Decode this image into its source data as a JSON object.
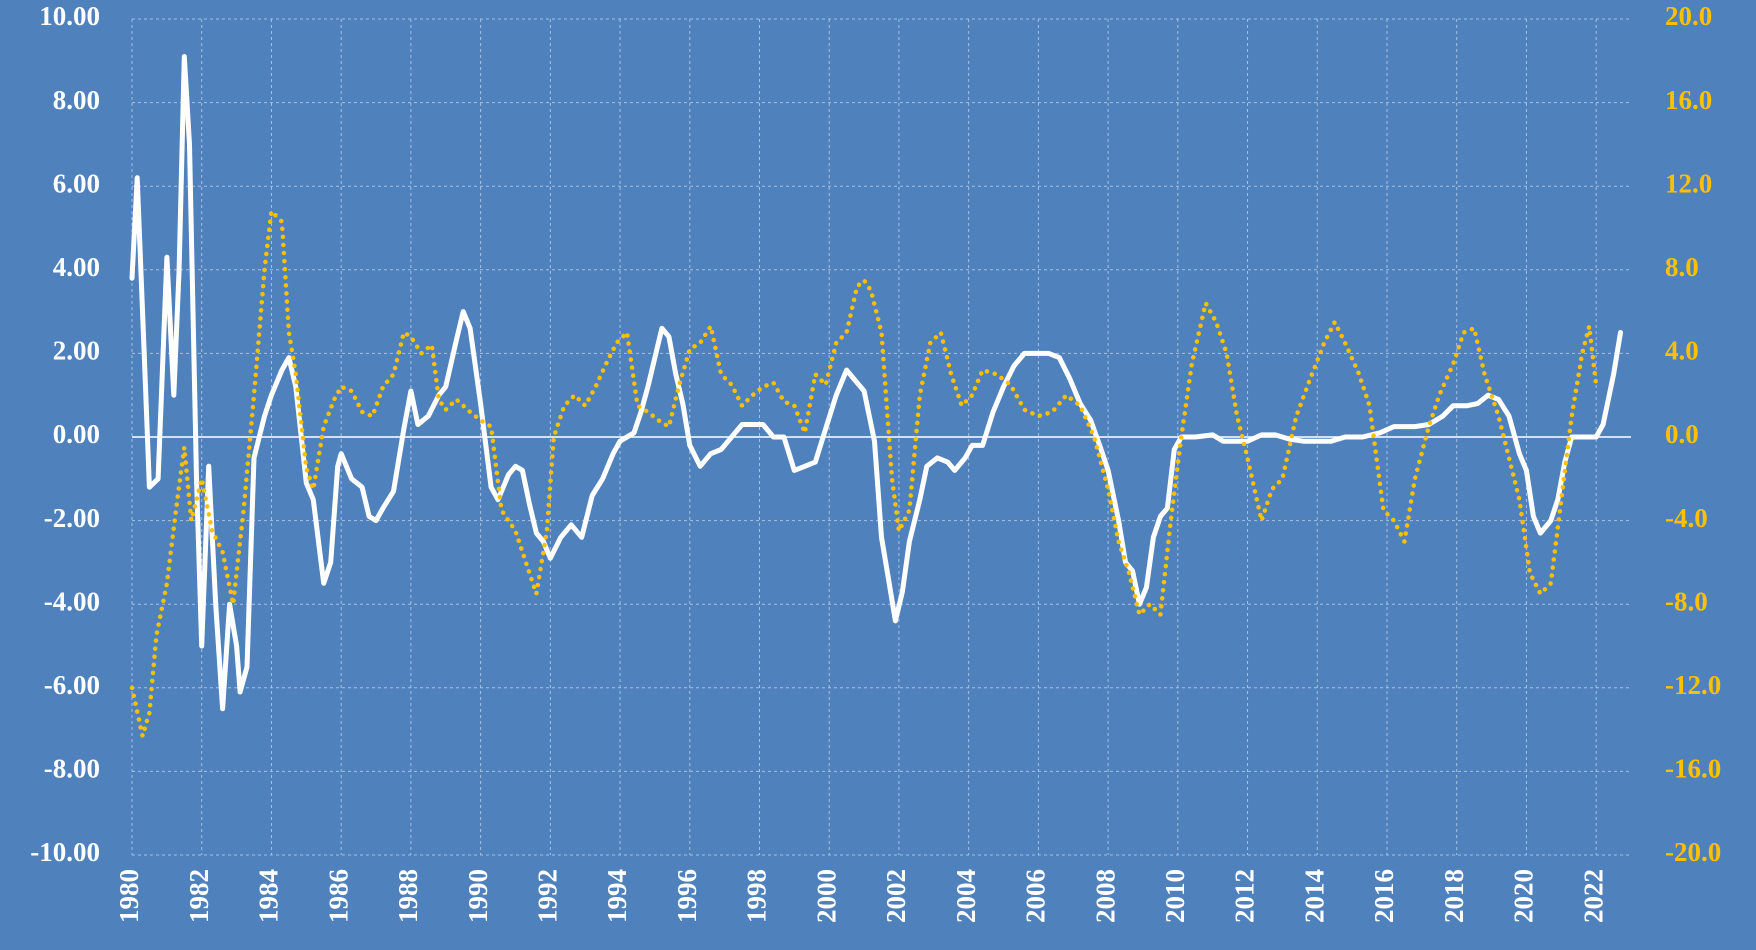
{
  "chart_data": {
    "type": "line",
    "xlim": [
      1980,
      2023
    ],
    "xticks": [
      1980,
      1982,
      1984,
      1986,
      1988,
      1990,
      1992,
      1994,
      1996,
      1998,
      2000,
      2002,
      2004,
      2006,
      2008,
      2010,
      2012,
      2014,
      2016,
      2018,
      2020,
      2022
    ],
    "ylim": [
      -10,
      10
    ],
    "yticks": [
      {
        "value": -10,
        "label": "-10.00"
      },
      {
        "value": -8,
        "label": "-8.00"
      },
      {
        "value": -6,
        "label": "-6.00"
      },
      {
        "value": -4,
        "label": "-4.00"
      },
      {
        "value": -2,
        "label": "-2.00"
      },
      {
        "value": 0,
        "label": "0.00"
      },
      {
        "value": 2,
        "label": "2.00"
      },
      {
        "value": 4,
        "label": "4.00"
      },
      {
        "value": 6,
        "label": "6.00"
      },
      {
        "value": 8,
        "label": "8.00"
      },
      {
        "value": 10,
        "label": "10.00"
      }
    ],
    "y2lim": [
      -20,
      20
    ],
    "y2ticks": [
      {
        "value": -20,
        "label": "-20.0"
      },
      {
        "value": -16,
        "label": "-16.0"
      },
      {
        "value": -12,
        "label": "-12.0"
      },
      {
        "value": -8,
        "label": "-8.0"
      },
      {
        "value": -4,
        "label": "-4.0"
      },
      {
        "value": 0,
        "label": "0.0"
      },
      {
        "value": 4,
        "label": "4.0"
      },
      {
        "value": 8,
        "label": "8.0"
      },
      {
        "value": 12,
        "label": "12.0"
      },
      {
        "value": 16,
        "label": "16.0"
      },
      {
        "value": 20,
        "label": "20.0"
      }
    ],
    "grid": true,
    "series": [
      {
        "color": "#ffffff",
        "style": "solid",
        "x": [
          1980.0,
          1980.15,
          1980.35,
          1980.5,
          1980.75,
          1981.0,
          1981.2,
          1981.35,
          1981.5,
          1981.65,
          1981.85,
          1982.0,
          1982.2,
          1982.4,
          1982.6,
          1982.8,
          1983.0,
          1983.1,
          1983.3,
          1983.5,
          1983.8,
          1984.0,
          1984.3,
          1984.5,
          1984.7,
          1985.0,
          1985.2,
          1985.5,
          1985.7,
          1985.9,
          1986.0,
          1986.3,
          1986.6,
          1986.8,
          1987.0,
          1987.2,
          1987.5,
          1987.8,
          1988.0,
          1988.2,
          1988.5,
          1988.8,
          1989.0,
          1989.3,
          1989.5,
          1989.7,
          1990.0,
          1990.3,
          1990.5,
          1990.8,
          1991.0,
          1991.2,
          1991.4,
          1991.6,
          1991.8,
          1992.0,
          1992.3,
          1992.6,
          1992.9,
          1993.2,
          1993.5,
          1993.8,
          1994.0,
          1994.4,
          1994.6,
          1994.8,
          1995.0,
          1995.2,
          1995.4,
          1995.6,
          1995.8,
          1996.0,
          1996.3,
          1996.6,
          1996.9,
          1997.2,
          1997.5,
          1997.8,
          1998.1,
          1998.4,
          1998.7,
          1999.0,
          1999.3,
          1999.6,
          1999.9,
          2000.2,
          2000.5,
          2000.8,
          2001.0,
          2001.3,
          2001.5,
          2001.7,
          2001.9,
          2002.1,
          2002.3,
          2002.6,
          2002.8,
          2003.1,
          2003.4,
          2003.6,
          2003.9,
          2004.1,
          2004.4,
          2004.7,
          2005.0,
          2005.3,
          2005.6,
          2006.0,
          2006.3,
          2006.6,
          2006.9,
          2007.2,
          2007.5,
          2007.8,
          2008.0,
          2008.3,
          2008.5,
          2008.7,
          2008.9,
          2009.1,
          2009.3,
          2009.5,
          2009.7,
          2009.9,
          2010.1,
          2010.5,
          2011.0,
          2011.3,
          2011.7,
          2012.0,
          2012.4,
          2012.8,
          2013.2,
          2013.6,
          2014.0,
          2014.4,
          2014.8,
          2015.3,
          2015.8,
          2016.2,
          2016.8,
          2017.2,
          2017.6,
          2017.9,
          2018.3,
          2018.6,
          2018.9,
          2019.2,
          2019.5,
          2019.8,
          2020.0,
          2020.2,
          2020.4,
          2020.7,
          2020.9,
          2021.1,
          2021.3,
          2021.6,
          2022.0,
          2022.2,
          2022.5,
          2022.7
        ],
        "values": [
          3.8,
          6.2,
          2.0,
          -1.2,
          -1.0,
          4.3,
          1.0,
          4.0,
          9.1,
          7.0,
          -1.0,
          -5.0,
          -0.7,
          -4.0,
          -6.5,
          -4.0,
          -5.0,
          -6.1,
          -5.5,
          -0.5,
          0.5,
          1.0,
          1.6,
          1.9,
          1.2,
          -1.1,
          -1.5,
          -3.5,
          -3.0,
          -0.7,
          -0.4,
          -1.0,
          -1.2,
          -1.9,
          -2.0,
          -1.7,
          -1.3,
          0.2,
          1.1,
          0.3,
          0.5,
          1.0,
          1.2,
          2.3,
          3.0,
          2.6,
          0.8,
          -1.2,
          -1.5,
          -0.9,
          -0.7,
          -0.8,
          -1.6,
          -2.3,
          -2.5,
          -2.9,
          -2.4,
          -2.1,
          -2.4,
          -1.4,
          -1.0,
          -0.4,
          -0.1,
          0.1,
          0.6,
          1.2,
          1.9,
          2.6,
          2.4,
          1.5,
          0.8,
          -0.2,
          -0.7,
          -0.4,
          -0.3,
          0.0,
          0.3,
          0.3,
          0.3,
          0.0,
          0.0,
          -0.8,
          -0.7,
          -0.6,
          0.2,
          1.0,
          1.6,
          1.3,
          1.1,
          -0.1,
          -2.4,
          -3.4,
          -4.4,
          -3.7,
          -2.5,
          -1.5,
          -0.7,
          -0.5,
          -0.6,
          -0.8,
          -0.5,
          -0.2,
          -0.2,
          0.6,
          1.2,
          1.7,
          2.0,
          2.0,
          2.0,
          1.9,
          1.4,
          0.8,
          0.4,
          -0.3,
          -0.8,
          -2.0,
          -3.0,
          -3.2,
          -4.0,
          -3.6,
          -2.4,
          -1.9,
          -1.7,
          -0.3,
          0.0,
          0.0,
          0.05,
          -0.1,
          -0.1,
          -0.1,
          0.05,
          0.05,
          -0.05,
          -0.1,
          -0.1,
          -0.1,
          0.0,
          0.0,
          0.1,
          0.25,
          0.25,
          0.3,
          0.5,
          0.75,
          0.75,
          0.8,
          1.0,
          0.9,
          0.5,
          -0.4,
          -0.8,
          -1.9,
          -2.3,
          -2.0,
          -1.5,
          -0.6,
          0.0,
          0.0,
          0.0,
          0.3,
          1.5,
          2.5
        ]
      },
      {
        "color": "#ffc000",
        "style": "dotted",
        "axis": "y2",
        "x": [
          1980.0,
          1980.3,
          1980.5,
          1980.7,
          1981.0,
          1981.3,
          1981.5,
          1981.7,
          1982.0,
          1982.3,
          1982.6,
          1982.9,
          1983.2,
          1983.5,
          1983.8,
          1984.0,
          1984.3,
          1984.5,
          1984.7,
          1985.0,
          1985.2,
          1985.5,
          1985.8,
          1986.0,
          1986.3,
          1986.6,
          1986.9,
          1987.2,
          1987.5,
          1987.8,
          1988.0,
          1988.3,
          1988.6,
          1988.8,
          1989.0,
          1989.3,
          1989.7,
          1990.0,
          1990.3,
          1990.6,
          1991.0,
          1991.3,
          1991.6,
          1991.9,
          1992.1,
          1992.4,
          1992.7,
          1993.0,
          1993.3,
          1993.6,
          1993.9,
          1994.2,
          1994.5,
          1994.8,
          1995.1,
          1995.4,
          1995.7,
          1996.0,
          1996.3,
          1996.6,
          1996.9,
          1997.2,
          1997.5,
          1997.8,
          1998.1,
          1998.4,
          1998.7,
          1999.0,
          1999.3,
          1999.6,
          1999.9,
          2000.2,
          2000.5,
          2000.8,
          2001.0,
          2001.2,
          2001.5,
          2001.8,
          2002.0,
          2002.3,
          2002.6,
          2002.9,
          2003.2,
          2003.5,
          2003.8,
          2004.1,
          2004.4,
          2004.8,
          2005.2,
          2005.6,
          2006.0,
          2006.4,
          2006.8,
          2007.2,
          2007.6,
          2008.0,
          2008.3,
          2008.6,
          2008.9,
          2009.2,
          2009.5,
          2009.8,
          2010.1,
          2010.4,
          2010.8,
          2011.1,
          2011.4,
          2011.7,
          2012.0,
          2012.4,
          2012.7,
          2013.0,
          2013.4,
          2013.8,
          2014.2,
          2014.5,
          2014.8,
          2015.2,
          2015.5,
          2015.9,
          2016.2,
          2016.5,
          2016.8,
          2017.2,
          2017.5,
          2017.9,
          2018.2,
          2018.5,
          2018.8,
          2019.2,
          2019.5,
          2019.8,
          2020.1,
          2020.4,
          2020.7,
          2021.0,
          2021.3,
          2021.6,
          2021.8,
          2022.0
        ],
        "values": [
          -12,
          -14.3,
          -13.2,
          -9.5,
          -7.0,
          -3.0,
          -0.5,
          -4.0,
          -2.0,
          -4.5,
          -5.5,
          -8.0,
          -3.5,
          2.0,
          8.0,
          10.8,
          10.3,
          5.0,
          3.0,
          -1.5,
          -2.5,
          0.5,
          1.8,
          2.4,
          2.2,
          1.2,
          1.0,
          2.4,
          3.0,
          5.0,
          4.8,
          4.0,
          4.4,
          1.8,
          1.3,
          1.8,
          1.2,
          0.8,
          0.5,
          -3.5,
          -4.5,
          -6.0,
          -7.5,
          -4.5,
          0.0,
          1.5,
          2.0,
          1.5,
          2.4,
          3.5,
          4.5,
          5.0,
          1.5,
          1.2,
          0.8,
          0.5,
          2.5,
          4.2,
          4.5,
          5.3,
          3.0,
          2.5,
          1.5,
          2.0,
          2.4,
          2.6,
          1.7,
          1.5,
          0.2,
          3.0,
          2.5,
          4.5,
          5.0,
          7.2,
          7.5,
          7.0,
          5.0,
          -2.0,
          -4.5,
          -3.5,
          2.0,
          4.5,
          5.0,
          3.0,
          1.5,
          2.0,
          3.2,
          3.0,
          2.5,
          1.3,
          1.0,
          1.2,
          2.0,
          1.5,
          0.0,
          -2.5,
          -5.0,
          -6.5,
          -8.5,
          -8.0,
          -8.5,
          -4.0,
          0.0,
          3.5,
          6.4,
          5.5,
          4.0,
          1.0,
          -1.0,
          -4.0,
          -2.5,
          -2.0,
          1.0,
          2.8,
          4.5,
          5.5,
          4.5,
          3.0,
          1.5,
          -3.5,
          -4.0,
          -5.0,
          -2.0,
          0.5,
          2.0,
          3.5,
          5.0,
          5.2,
          3.0,
          1.0,
          -1.0,
          -3.0,
          -6.5,
          -7.5,
          -7.0,
          -3.0,
          1.0,
          4.0,
          5.3,
          2.5
        ]
      }
    ]
  }
}
